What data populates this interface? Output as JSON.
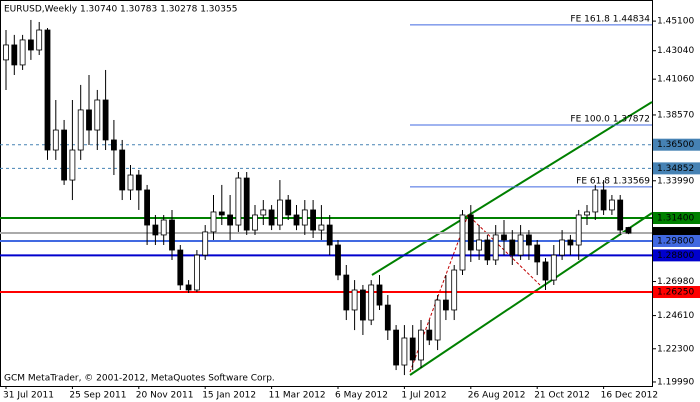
{
  "chart_data": {
    "type": "candlestick",
    "title": "EURUSD,Weekly  1.30740 1.30783 1.30278 1.30355",
    "footer": "GCM MetaTrader, © 2001-2012, MetaQuotes Software Corp.",
    "categories": [
      "31 Jul 2011",
      null,
      null,
      null,
      null,
      null,
      null,
      null,
      "25 Sep 2011",
      null,
      null,
      null,
      null,
      null,
      null,
      null,
      "20 Nov 2011",
      null,
      null,
      null,
      null,
      null,
      null,
      null,
      "15 Jan 2012",
      null,
      null,
      null,
      null,
      null,
      null,
      null,
      "11 Mar 2012",
      null,
      null,
      null,
      null,
      null,
      null,
      null,
      "6 May 2012",
      null,
      null,
      null,
      null,
      null,
      null,
      null,
      "1 Jul 2012",
      null,
      null,
      null,
      null,
      null,
      null,
      null,
      "26 Aug 2012",
      null,
      null,
      null,
      null,
      null,
      null,
      null,
      "21 Oct 2012",
      null,
      null,
      null,
      null,
      null,
      null,
      null,
      "16 Dec 2012",
      null,
      null,
      null
    ],
    "open": [
      1.424,
      1.4344,
      1.4205,
      1.4379,
      1.4309,
      1.4448,
      1.3613,
      1.3752,
      1.3404,
      1.3613,
      1.3892,
      1.3752,
      1.3961,
      1.3683,
      1.3613,
      1.3335,
      1.3439,
      1.3335,
      1.3091,
      1.3022,
      1.3126,
      1.2917,
      1.2674,
      1.2639,
      1.2882,
      1.3043,
      1.3182,
      1.3161,
      1.3091,
      1.3418,
      1.3056,
      1.3161,
      1.3196,
      1.3091,
      1.3265,
      1.3161,
      1.3091,
      1.3196,
      1.3056,
      1.3091,
      1.2952,
      1.2743,
      1.25,
      1.2639,
      1.243,
      1.2674,
      1.2534,
      1.236,
      1.2117,
      1.2305,
      1.2152,
      1.236,
      1.2291,
      1.2569,
      1.25,
      1.2778,
      1.3161,
      1.2917,
      1.2987,
      1.2848,
      1.3022,
      1.2987,
      1.2882,
      1.3022,
      1.2952,
      1.2834,
      1.2708,
      1.2882,
      1.2987,
      1.2952,
      1.3161,
      1.3182,
      1.3335,
      1.3196,
      1.3265,
      1.3074
    ],
    "high": [
      1.4448,
      1.4414,
      1.4414,
      1.4518,
      1.4504,
      1.4462,
      1.3961,
      1.3822,
      1.3961,
      1.4066,
      1.4135,
      1.4031,
      1.417,
      1.3822,
      1.3683,
      1.3509,
      1.3474,
      1.337,
      1.3161,
      1.3161,
      1.3196,
      1.2952,
      1.2708,
      1.2917,
      1.3091,
      1.33,
      1.337,
      1.33,
      1.346,
      1.346,
      1.323,
      1.3265,
      1.323,
      1.3404,
      1.33,
      1.323,
      1.3265,
      1.3265,
      1.323,
      1.3161,
      1.2987,
      1.2813,
      1.2708,
      1.2674,
      1.2708,
      1.2743,
      1.2604,
      1.2395,
      1.2395,
      1.2395,
      1.243,
      1.243,
      1.2604,
      1.2743,
      1.2813,
      1.3196,
      1.323,
      1.3091,
      1.3022,
      1.3091,
      1.3126,
      1.3056,
      1.3091,
      1.3056,
      1.2987,
      1.2862,
      1.2952,
      1.3056,
      1.3022,
      1.3196,
      1.323,
      1.337,
      1.3404,
      1.33,
      1.33,
      1.30783
    ],
    "low": [
      1.4031,
      1.4135,
      1.417,
      1.424,
      1.4274,
      1.3544,
      1.3544,
      1.337,
      1.3265,
      1.3544,
      1.3648,
      1.3613,
      1.3613,
      1.3439,
      1.3265,
      1.3265,
      1.3196,
      1.2952,
      1.2952,
      1.2952,
      1.2848,
      1.2639,
      1.2618,
      1.2625,
      1.2848,
      1.2987,
      1.3091,
      1.2987,
      1.3043,
      1.3022,
      1.3022,
      1.3091,
      1.3056,
      1.3056,
      1.3126,
      1.3056,
      1.3022,
      1.3001,
      1.2987,
      1.2882,
      1.2708,
      1.243,
      1.236,
      1.2326,
      1.2395,
      1.25,
      1.2291,
      1.2082,
      1.2047,
      1.2082,
      1.2096,
      1.2256,
      1.2221,
      1.243,
      1.243,
      1.2743,
      1.2834,
      1.2848,
      1.2813,
      1.2813,
      1.2882,
      1.2813,
      1.2848,
      1.2848,
      1.2743,
      1.2639,
      1.2674,
      1.2848,
      1.2882,
      1.2848,
      1.3091,
      1.3126,
      1.3161,
      1.3161,
      1.3022,
      1.30278
    ],
    "close": [
      1.4344,
      1.4205,
      1.4379,
      1.4309,
      1.4448,
      1.3613,
      1.3752,
      1.3404,
      1.3613,
      1.3892,
      1.3752,
      1.3961,
      1.3683,
      1.3613,
      1.3335,
      1.3439,
      1.3335,
      1.3091,
      1.3022,
      1.3126,
      1.2917,
      1.2674,
      1.2639,
      1.2882,
      1.3043,
      1.3182,
      1.3161,
      1.3091,
      1.3418,
      1.3056,
      1.3161,
      1.3196,
      1.3091,
      1.3265,
      1.3161,
      1.3091,
      1.3196,
      1.3056,
      1.3091,
      1.2952,
      1.2743,
      1.25,
      1.2639,
      1.243,
      1.2674,
      1.2534,
      1.236,
      1.2117,
      1.2305,
      1.2152,
      1.236,
      1.2291,
      1.2569,
      1.25,
      1.2778,
      1.3161,
      1.2917,
      1.2987,
      1.2848,
      1.3022,
      1.2987,
      1.2882,
      1.3022,
      1.2952,
      1.2834,
      1.2708,
      1.2882,
      1.2987,
      1.2952,
      1.3161,
      1.3182,
      1.3335,
      1.3196,
      1.3265,
      1.3056,
      1.30355
    ],
    "up_color": "#ffffff",
    "down_color": "#000000",
    "ylim": [
      1.1971,
      1.4629
    ],
    "yticks": [
      {
        "value": 1.451,
        "label": "1.45100"
      },
      {
        "value": 1.4304,
        "label": "1.43040"
      },
      {
        "value": 1.4106,
        "label": "1.41060"
      },
      {
        "value": 1.3857,
        "label": "1.38570"
      },
      {
        "value": 1.3399,
        "label": "1.33990"
      },
      {
        "value": 1.2698,
        "label": "1.26980"
      },
      {
        "value": 1.2461,
        "label": "1.24610"
      },
      {
        "value": 1.223,
        "label": "1.22300"
      },
      {
        "value": 1.1999,
        "label": "1.19990"
      }
    ],
    "levels": [
      {
        "value": 1.365,
        "label": "1.36500",
        "color": "#4682b4",
        "dashed": true
      },
      {
        "value": 1.34852,
        "label": "1.34852",
        "color": "#4682b4",
        "dashed": true
      },
      {
        "value": 1.314,
        "label": "1.31400",
        "color": "#008000",
        "dashed": false
      },
      {
        "value": 1.30355,
        "label": "1.30355",
        "color": "#000000",
        "dashed": false
      },
      {
        "value": 1.298,
        "label": "1.29800",
        "color": "#4169e1",
        "dashed": false
      },
      {
        "value": 1.288,
        "label": "1.28800",
        "color": "#0000cd",
        "dashed": false
      },
      {
        "value": 1.2625,
        "label": "1.26250",
        "color": "#ff0000",
        "dashed": false
      }
    ],
    "fibo_levels": [
      {
        "value": 1.44834,
        "label": "FE 161.8  1.44834"
      },
      {
        "value": 1.37872,
        "label": "FE 100.0  1.37872"
      },
      {
        "value": 1.33569,
        "label": "FE 61.8  1.33569"
      }
    ],
    "fibo_color": "#4169e1"
  }
}
